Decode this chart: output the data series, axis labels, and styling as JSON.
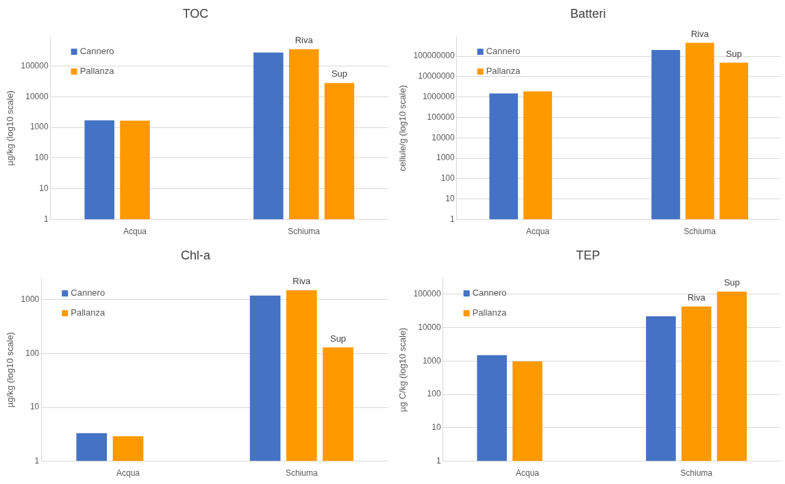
{
  "chart_data": [
    {
      "type": "bar",
      "title": "TOC",
      "ylabel": "µg/kg (log10 scale)",
      "categories": [
        "Acqua",
        "Schiuma"
      ],
      "log": true,
      "grid": "y",
      "legend": "top left",
      "ylim": [
        1,
        900000
      ],
      "yticks": [
        1,
        10,
        100,
        1000,
        10000,
        100000
      ],
      "series": [
        {
          "name": "Cannero",
          "color": "#4472c4",
          "values": [
            1700,
            275000
          ]
        },
        {
          "name": "Pallanza",
          "color": "#ff9900",
          "values": [
            1650,
            350000
          ]
        },
        {
          "name": "Sup",
          "color": "#ff9900",
          "values": [
            null,
            28000
          ]
        }
      ],
      "annotations": [
        {
          "text": "Riva",
          "x": "Schiuma",
          "y": 350000
        }
      ]
    },
    {
      "type": "bar",
      "title": "Batteri",
      "ylabel": "cellule/g (log10 scale)",
      "categories": [
        "Acqua",
        "Schiuma"
      ],
      "log": true,
      "grid": "y",
      "legend": "top left",
      "ylim": [
        1,
        900000000
      ],
      "yticks": [
        1,
        10,
        100,
        1000,
        10000,
        100000,
        1000000,
        10000000,
        100000000
      ],
      "series": [
        {
          "name": "Cannero",
          "color": "#4472c4",
          "values": [
            1500000,
            200000000
          ]
        },
        {
          "name": "Pallanza",
          "color": "#ff9900",
          "values": [
            1900000,
            450000000
          ]
        },
        {
          "name": "Sup",
          "color": "#ff9900",
          "values": [
            null,
            48000000
          ]
        }
      ],
      "annotations": [
        {
          "text": "Riva",
          "x": "Schiuma",
          "y": 450000000
        }
      ]
    },
    {
      "type": "bar",
      "title": "Chl-a",
      "ylabel": "µg/kg (log10 scale)",
      "categories": [
        "Acqua",
        "Schiuma"
      ],
      "log": true,
      "grid": "y",
      "legend": "top left",
      "ylim": [
        1,
        2500
      ],
      "yticks": [
        1,
        10,
        100,
        1000
      ],
      "series": [
        {
          "name": "Cannero",
          "color": "#4472c4",
          "values": [
            3.3,
            1200
          ]
        },
        {
          "name": "Pallanza",
          "color": "#ff9900",
          "values": [
            2.9,
            1500
          ]
        },
        {
          "name": "Sup",
          "color": "#ff9900",
          "values": [
            null,
            130
          ]
        }
      ],
      "annotations": [
        {
          "text": "Riva",
          "x": "Schiuma",
          "y": 1500
        }
      ]
    },
    {
      "type": "bar",
      "title": "TEP",
      "ylabel": "µg C/kg (log10 scale)",
      "categories": [
        "Acqua",
        "Schiuma"
      ],
      "log": true,
      "grid": "y",
      "legend": "top left",
      "ylim": [
        1,
        300000
      ],
      "yticks": [
        1,
        10,
        100,
        1000,
        10000,
        100000
      ],
      "series": [
        {
          "name": "Cannero",
          "color": "#4472c4",
          "values": [
            1500,
            22000
          ]
        },
        {
          "name": "Pallanza",
          "color": "#ff9900",
          "values": [
            970,
            43000
          ]
        },
        {
          "name": "Sup",
          "color": "#ff9900",
          "values": [
            null,
            120000
          ]
        }
      ],
      "annotations": [
        {
          "text": "Riva",
          "x": "Schiuma",
          "y": 43000
        }
      ]
    }
  ]
}
